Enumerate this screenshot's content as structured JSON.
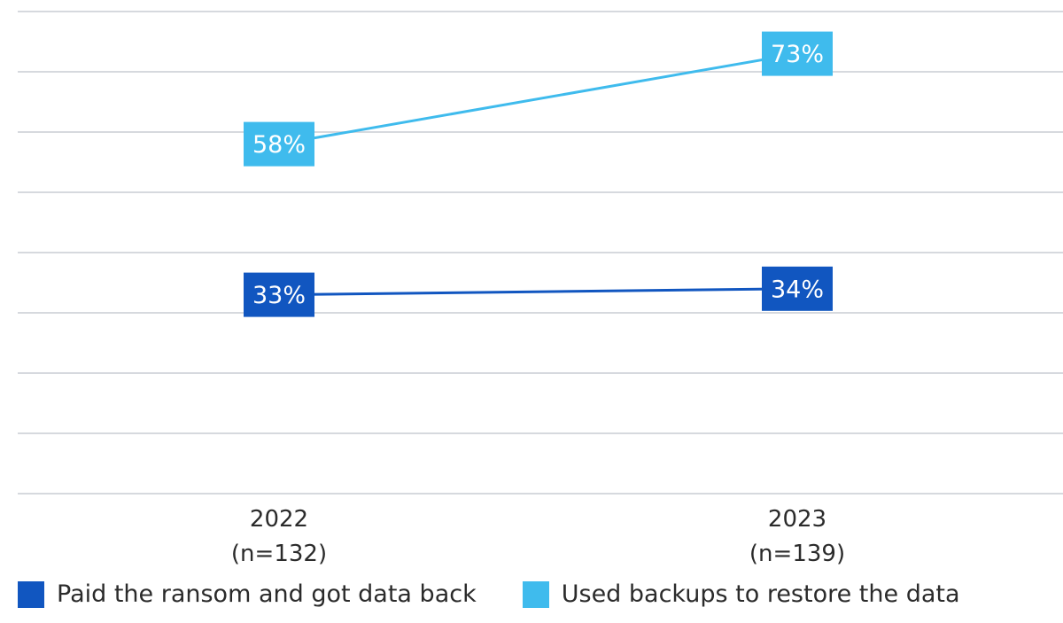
{
  "chart_data": {
    "type": "line",
    "title": "",
    "xlabel": "",
    "ylabel": "",
    "ylim": [
      0,
      80
    ],
    "grid": true,
    "legend_position": "bottom-left",
    "categories": [
      {
        "year": "2022",
        "sample": "(n=132)"
      },
      {
        "year": "2023",
        "sample": "(n=139)"
      }
    ],
    "series": [
      {
        "name": "Paid the ransom and got data back",
        "color": "#1156c0",
        "values": [
          33,
          34
        ],
        "labels": [
          "33%",
          "34%"
        ]
      },
      {
        "name": "Used backups to restore the data",
        "color": "#3fbbed",
        "values": [
          58,
          73
        ],
        "labels": [
          "58%",
          "73%"
        ]
      }
    ]
  }
}
